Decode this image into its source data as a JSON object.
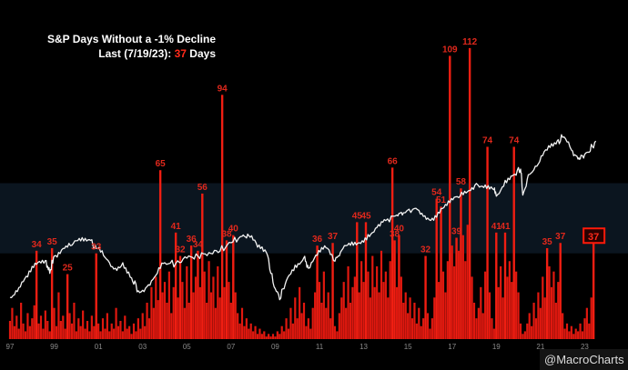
{
  "chart_data": {
    "type": "bar",
    "title": "S&P Days Without a -1% Decline",
    "subtitle": {
      "prefix": "Last (7/19/23): ",
      "value": "37",
      "suffix": " Days"
    },
    "xlabel": "",
    "ylabel": "",
    "ylim": [
      0,
      120
    ],
    "grid": false,
    "x_ticks": [
      "97",
      "99",
      "01",
      "03",
      "05",
      "07",
      "09",
      "11",
      "13",
      "15",
      "17",
      "19",
      "21",
      "23"
    ],
    "x_range": [
      1997,
      2023.6
    ],
    "peaks": [
      {
        "x": 1998.2,
        "value": 34,
        "label": "34"
      },
      {
        "x": 1998.9,
        "value": 35,
        "label": "35"
      },
      {
        "x": 1999.6,
        "value": 25,
        "label": "25"
      },
      {
        "x": 2000.9,
        "value": 33,
        "label": "33"
      },
      {
        "x": 2003.8,
        "value": 65,
        "label": "65"
      },
      {
        "x": 2004.5,
        "value": 41,
        "label": "41"
      },
      {
        "x": 2004.7,
        "value": 32,
        "label": "32"
      },
      {
        "x": 2005.2,
        "value": 36,
        "label": "36"
      },
      {
        "x": 2005.5,
        "value": 34,
        "label": "34"
      },
      {
        "x": 2005.7,
        "value": 56,
        "label": "56"
      },
      {
        "x": 2006.6,
        "value": 94,
        "label": "94"
      },
      {
        "x": 2006.8,
        "value": 38,
        "label": "38"
      },
      {
        "x": 2007.1,
        "value": 40,
        "label": "40"
      },
      {
        "x": 2010.9,
        "value": 36,
        "label": "36"
      },
      {
        "x": 2011.6,
        "value": 37,
        "label": "37"
      },
      {
        "x": 2012.7,
        "value": 45,
        "label": "45"
      },
      {
        "x": 2013.1,
        "value": 45,
        "label": "45"
      },
      {
        "x": 2014.3,
        "value": 66,
        "label": "66"
      },
      {
        "x": 2014.4,
        "value": 38,
        "label": "38"
      },
      {
        "x": 2014.6,
        "value": 40,
        "label": "40"
      },
      {
        "x": 2015.8,
        "value": 32,
        "label": "32"
      },
      {
        "x": 2016.3,
        "value": 54,
        "label": "54"
      },
      {
        "x": 2016.5,
        "value": 51,
        "label": "51"
      },
      {
        "x": 2016.9,
        "value": 109,
        "label": "109"
      },
      {
        "x": 2017.2,
        "value": 39,
        "label": "39"
      },
      {
        "x": 2017.4,
        "value": 58,
        "label": "58"
      },
      {
        "x": 2017.8,
        "value": 112,
        "label": "112"
      },
      {
        "x": 2018.6,
        "value": 74,
        "label": "74"
      },
      {
        "x": 2019.0,
        "value": 41,
        "label": "41"
      },
      {
        "x": 2019.4,
        "value": 41,
        "label": "41"
      },
      {
        "x": 2019.8,
        "value": 74,
        "label": "74"
      },
      {
        "x": 2021.3,
        "value": 35,
        "label": "35"
      },
      {
        "x": 2021.9,
        "value": 37,
        "label": "37"
      },
      {
        "x": 2023.4,
        "value": 37,
        "label": "37",
        "highlight": true
      }
    ],
    "background_bars": [
      [
        1997.0,
        7
      ],
      [
        1997.1,
        12
      ],
      [
        1997.2,
        5
      ],
      [
        1997.3,
        9
      ],
      [
        1997.4,
        4
      ],
      [
        1997.5,
        14
      ],
      [
        1997.6,
        6
      ],
      [
        1997.7,
        3
      ],
      [
        1997.8,
        10
      ],
      [
        1997.9,
        5
      ],
      [
        1998.0,
        8
      ],
      [
        1998.1,
        13
      ],
      [
        1998.3,
        6
      ],
      [
        1998.4,
        9
      ],
      [
        1998.5,
        4
      ],
      [
        1998.6,
        11
      ],
      [
        1998.7,
        7
      ],
      [
        1998.8,
        3
      ],
      [
        1999.0,
        12
      ],
      [
        1999.1,
        5
      ],
      [
        1999.2,
        18
      ],
      [
        1999.3,
        7
      ],
      [
        1999.4,
        9
      ],
      [
        1999.5,
        4
      ],
      [
        1999.7,
        10
      ],
      [
        1999.8,
        6
      ],
      [
        1999.9,
        14
      ],
      [
        2000.0,
        3
      ],
      [
        2000.1,
        8
      ],
      [
        2000.2,
        5
      ],
      [
        2000.3,
        11
      ],
      [
        2000.4,
        4
      ],
      [
        2000.5,
        7
      ],
      [
        2000.6,
        3
      ],
      [
        2000.7,
        9
      ],
      [
        2000.8,
        5
      ],
      [
        2001.0,
        6
      ],
      [
        2001.1,
        3
      ],
      [
        2001.2,
        8
      ],
      [
        2001.3,
        4
      ],
      [
        2001.4,
        10
      ],
      [
        2001.5,
        3
      ],
      [
        2001.6,
        6
      ],
      [
        2001.7,
        4
      ],
      [
        2001.8,
        12
      ],
      [
        2001.9,
        5
      ],
      [
        2002.0,
        7
      ],
      [
        2002.1,
        3
      ],
      [
        2002.2,
        9
      ],
      [
        2002.3,
        4
      ],
      [
        2002.4,
        5
      ],
      [
        2002.5,
        2
      ],
      [
        2002.6,
        6
      ],
      [
        2002.7,
        3
      ],
      [
        2002.8,
        8
      ],
      [
        2002.9,
        4
      ],
      [
        2003.0,
        10
      ],
      [
        2003.1,
        5
      ],
      [
        2003.2,
        14
      ],
      [
        2003.3,
        8
      ],
      [
        2003.4,
        20
      ],
      [
        2003.5,
        12
      ],
      [
        2003.6,
        24
      ],
      [
        2003.7,
        15
      ],
      [
        2003.9,
        18
      ],
      [
        2004.0,
        22
      ],
      [
        2004.1,
        14
      ],
      [
        2004.2,
        26
      ],
      [
        2004.3,
        10
      ],
      [
        2004.4,
        20
      ],
      [
        2004.6,
        16
      ],
      [
        2004.8,
        22
      ],
      [
        2004.9,
        12
      ],
      [
        2005.0,
        28
      ],
      [
        2005.1,
        14
      ],
      [
        2005.3,
        18
      ],
      [
        2005.4,
        24
      ],
      [
        2005.6,
        20
      ],
      [
        2005.8,
        26
      ],
      [
        2005.9,
        14
      ],
      [
        2006.0,
        30
      ],
      [
        2006.1,
        18
      ],
      [
        2006.2,
        24
      ],
      [
        2006.3,
        12
      ],
      [
        2006.4,
        28
      ],
      [
        2006.5,
        16
      ],
      [
        2006.7,
        20
      ],
      [
        2006.9,
        22
      ],
      [
        2007.0,
        14
      ],
      [
        2007.2,
        18
      ],
      [
        2007.3,
        10
      ],
      [
        2007.4,
        6
      ],
      [
        2007.5,
        12
      ],
      [
        2007.6,
        5
      ],
      [
        2007.7,
        8
      ],
      [
        2007.8,
        4
      ],
      [
        2007.9,
        6
      ],
      [
        2008.0,
        3
      ],
      [
        2008.1,
        5
      ],
      [
        2008.2,
        2
      ],
      [
        2008.3,
        4
      ],
      [
        2008.4,
        2
      ],
      [
        2008.5,
        3
      ],
      [
        2008.6,
        1
      ],
      [
        2008.7,
        2
      ],
      [
        2008.8,
        1
      ],
      [
        2008.9,
        2
      ],
      [
        2009.0,
        1
      ],
      [
        2009.1,
        3
      ],
      [
        2009.2,
        2
      ],
      [
        2009.3,
        5
      ],
      [
        2009.4,
        3
      ],
      [
        2009.5,
        8
      ],
      [
        2009.6,
        4
      ],
      [
        2009.7,
        12
      ],
      [
        2009.8,
        6
      ],
      [
        2009.9,
        16
      ],
      [
        2010.0,
        8
      ],
      [
        2010.1,
        20
      ],
      [
        2010.2,
        10
      ],
      [
        2010.3,
        14
      ],
      [
        2010.4,
        5
      ],
      [
        2010.5,
        8
      ],
      [
        2010.6,
        4
      ],
      [
        2010.7,
        12
      ],
      [
        2010.8,
        18
      ],
      [
        2011.0,
        22
      ],
      [
        2011.1,
        14
      ],
      [
        2011.2,
        26
      ],
      [
        2011.3,
        12
      ],
      [
        2011.4,
        18
      ],
      [
        2011.5,
        8
      ],
      [
        2011.7,
        5
      ],
      [
        2011.8,
        3
      ],
      [
        2011.9,
        10
      ],
      [
        2012.0,
        16
      ],
      [
        2012.1,
        22
      ],
      [
        2012.2,
        12
      ],
      [
        2012.3,
        28
      ],
      [
        2012.4,
        14
      ],
      [
        2012.5,
        20
      ],
      [
        2012.6,
        24
      ],
      [
        2012.8,
        18
      ],
      [
        2012.9,
        30
      ],
      [
        2013.0,
        22
      ],
      [
        2013.2,
        26
      ],
      [
        2013.3,
        16
      ],
      [
        2013.4,
        32
      ],
      [
        2013.5,
        20
      ],
      [
        2013.6,
        28
      ],
      [
        2013.7,
        18
      ],
      [
        2013.8,
        34
      ],
      [
        2013.9,
        22
      ],
      [
        2014.0,
        26
      ],
      [
        2014.1,
        16
      ],
      [
        2014.2,
        30
      ],
      [
        2014.5,
        20
      ],
      [
        2014.7,
        24
      ],
      [
        2014.8,
        14
      ],
      [
        2014.9,
        18
      ],
      [
        2015.0,
        10
      ],
      [
        2015.1,
        16
      ],
      [
        2015.2,
        8
      ],
      [
        2015.3,
        14
      ],
      [
        2015.4,
        6
      ],
      [
        2015.5,
        12
      ],
      [
        2015.6,
        5
      ],
      [
        2015.7,
        8
      ],
      [
        2015.9,
        10
      ],
      [
        2016.0,
        4
      ],
      [
        2016.1,
        8
      ],
      [
        2016.2,
        16
      ],
      [
        2016.4,
        22
      ],
      [
        2016.6,
        26
      ],
      [
        2016.7,
        18
      ],
      [
        2016.8,
        30
      ],
      [
        2017.0,
        36
      ],
      [
        2017.1,
        28
      ],
      [
        2017.3,
        34
      ],
      [
        2017.5,
        40
      ],
      [
        2017.6,
        30
      ],
      [
        2017.7,
        44
      ],
      [
        2017.9,
        24
      ],
      [
        2018.0,
        14
      ],
      [
        2018.1,
        8
      ],
      [
        2018.2,
        12
      ],
      [
        2018.3,
        20
      ],
      [
        2018.4,
        10
      ],
      [
        2018.5,
        26
      ],
      [
        2018.7,
        18
      ],
      [
        2018.8,
        8
      ],
      [
        2018.9,
        4
      ],
      [
        2019.1,
        20
      ],
      [
        2019.2,
        28
      ],
      [
        2019.3,
        16
      ],
      [
        2019.5,
        24
      ],
      [
        2019.6,
        30
      ],
      [
        2019.7,
        22
      ],
      [
        2019.9,
        26
      ],
      [
        2020.0,
        18
      ],
      [
        2020.1,
        6
      ],
      [
        2020.2,
        2
      ],
      [
        2020.3,
        3
      ],
      [
        2020.4,
        6
      ],
      [
        2020.5,
        10
      ],
      [
        2020.6,
        5
      ],
      [
        2020.7,
        14
      ],
      [
        2020.8,
        8
      ],
      [
        2020.9,
        18
      ],
      [
        2021.0,
        12
      ],
      [
        2021.1,
        24
      ],
      [
        2021.2,
        16
      ],
      [
        2021.4,
        28
      ],
      [
        2021.5,
        20
      ],
      [
        2021.6,
        26
      ],
      [
        2021.7,
        14
      ],
      [
        2021.8,
        22
      ],
      [
        2022.0,
        10
      ],
      [
        2022.1,
        4
      ],
      [
        2022.2,
        6
      ],
      [
        2022.3,
        3
      ],
      [
        2022.4,
        5
      ],
      [
        2022.5,
        2
      ],
      [
        2022.6,
        4
      ],
      [
        2022.7,
        3
      ],
      [
        2022.8,
        6
      ],
      [
        2022.9,
        3
      ],
      [
        2023.0,
        8
      ],
      [
        2023.1,
        12
      ],
      [
        2023.2,
        6
      ],
      [
        2023.3,
        16
      ]
    ],
    "shaded_band": {
      "from": 33,
      "to": 60
    },
    "index_line": {
      "name": "",
      "ylim": [
        1.8,
        4.0
      ],
      "log_scale": true,
      "points": [
        [
          1997.0,
          760
        ],
        [
          1997.4,
          850
        ],
        [
          1997.8,
          960
        ],
        [
          1998.2,
          1110
        ],
        [
          1998.6,
          1160
        ],
        [
          1998.8,
          1000
        ],
        [
          1999.0,
          1220
        ],
        [
          1999.4,
          1330
        ],
        [
          1999.8,
          1380
        ],
        [
          2000.2,
          1450
        ],
        [
          2000.6,
          1470
        ],
        [
          2000.9,
          1330
        ],
        [
          2001.3,
          1200
        ],
        [
          2001.7,
          1050
        ],
        [
          2002.1,
          1130
        ],
        [
          2002.5,
          950
        ],
        [
          2002.8,
          820
        ],
        [
          2003.2,
          860
        ],
        [
          2003.6,
          980
        ],
        [
          2004.0,
          1130
        ],
        [
          2004.5,
          1120
        ],
        [
          2005.0,
          1190
        ],
        [
          2005.5,
          1220
        ],
        [
          2006.0,
          1270
        ],
        [
          2006.5,
          1290
        ],
        [
          2007.0,
          1420
        ],
        [
          2007.5,
          1530
        ],
        [
          2007.8,
          1540
        ],
        [
          2008.2,
          1350
        ],
        [
          2008.6,
          1270
        ],
        [
          2008.9,
          900
        ],
        [
          2009.2,
          740
        ],
        [
          2009.5,
          920
        ],
        [
          2009.9,
          1100
        ],
        [
          2010.3,
          1200
        ],
        [
          2010.5,
          1060
        ],
        [
          2010.9,
          1230
        ],
        [
          2011.3,
          1340
        ],
        [
          2011.7,
          1150
        ],
        [
          2012.0,
          1300
        ],
        [
          2012.4,
          1380
        ],
        [
          2012.8,
          1420
        ],
        [
          2013.2,
          1560
        ],
        [
          2013.6,
          1690
        ],
        [
          2014.0,
          1830
        ],
        [
          2014.5,
          1950
        ],
        [
          2014.8,
          2000
        ],
        [
          2015.3,
          2100
        ],
        [
          2015.7,
          1920
        ],
        [
          2016.1,
          1880
        ],
        [
          2016.5,
          2100
        ],
        [
          2016.9,
          2250
        ],
        [
          2017.3,
          2380
        ],
        [
          2017.7,
          2550
        ],
        [
          2018.1,
          2800
        ],
        [
          2018.5,
          2750
        ],
        [
          2018.9,
          2600
        ],
        [
          2019.0,
          2420
        ],
        [
          2019.4,
          2900
        ],
        [
          2019.8,
          3100
        ],
        [
          2020.1,
          3300
        ],
        [
          2020.2,
          2450
        ],
        [
          2020.5,
          3100
        ],
        [
          2020.9,
          3500
        ],
        [
          2021.3,
          4100
        ],
        [
          2021.7,
          4400
        ],
        [
          2022.0,
          4750
        ],
        [
          2022.4,
          4100
        ],
        [
          2022.7,
          3700
        ],
        [
          2022.9,
          3850
        ],
        [
          2023.2,
          4000
        ],
        [
          2023.5,
          4550
        ]
      ]
    },
    "credit": "@MacroCharts"
  }
}
